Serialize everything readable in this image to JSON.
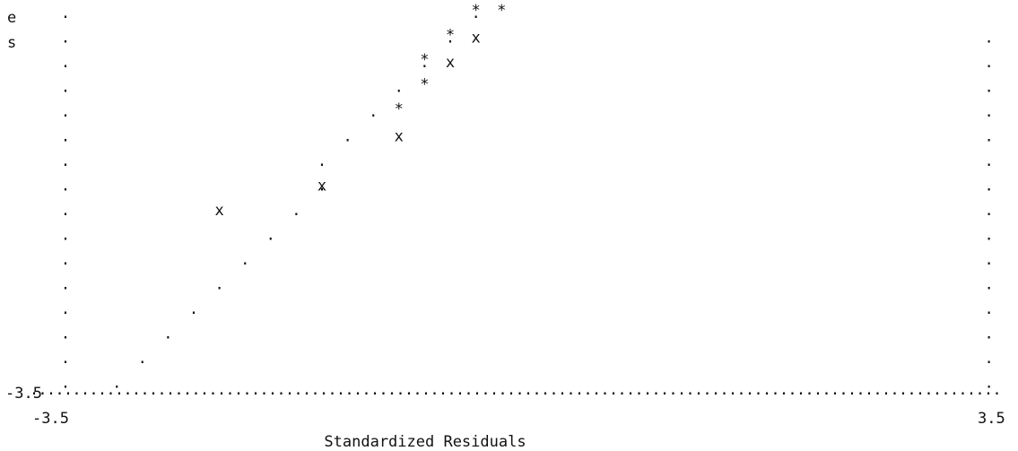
{
  "chart_data": {
    "type": "scatter",
    "style": "line-printer character plot",
    "axis_label_fragments": [
      "e",
      "s"
    ],
    "y_axis": {
      "min_label": "-3.5"
    },
    "x_axis": {
      "min_label": "-3.5",
      "max_label": "3.5",
      "label": "Standardized Residuals",
      "range": [
        -3.5,
        3.5
      ]
    },
    "axis_marker": ".",
    "reference_line_marker": ".",
    "point_markers": {
      "x": "x",
      "star": "*"
    },
    "reference_line": [
      {
        "col": 2,
        "row": 15
      },
      {
        "col": 3,
        "row": 14
      },
      {
        "col": 4,
        "row": 13
      },
      {
        "col": 5,
        "row": 12
      },
      {
        "col": 6,
        "row": 11
      },
      {
        "col": 7,
        "row": 10
      },
      {
        "col": 8,
        "row": 9
      },
      {
        "col": 9,
        "row": 8
      },
      {
        "col": 10,
        "row": 7
      },
      {
        "col": 10,
        "row": 6
      },
      {
        "col": 11,
        "row": 5
      },
      {
        "col": 12,
        "row": 4
      },
      {
        "col": 13,
        "row": 3
      },
      {
        "col": 14,
        "row": 2
      },
      {
        "col": 15,
        "row": 1
      },
      {
        "col": 16,
        "row": 0
      }
    ],
    "points": [
      {
        "marker": "x",
        "col": 6,
        "row": 8
      },
      {
        "marker": "x",
        "col": 10,
        "row": 7
      },
      {
        "marker": "x",
        "col": 13,
        "row": 5
      },
      {
        "marker": "star",
        "col": 13,
        "row": 4
      },
      {
        "marker": "star",
        "col": 14,
        "row": 3
      },
      {
        "marker": "star",
        "col": 14,
        "row": 2
      },
      {
        "marker": "x",
        "col": 15,
        "row": 2
      },
      {
        "marker": "star",
        "col": 15,
        "row": 1
      },
      {
        "marker": "x",
        "col": 16,
        "row": 1
      },
      {
        "marker": "star",
        "col": 16,
        "row": 0
      },
      {
        "marker": "star",
        "col": 17,
        "row": 0
      }
    ]
  }
}
